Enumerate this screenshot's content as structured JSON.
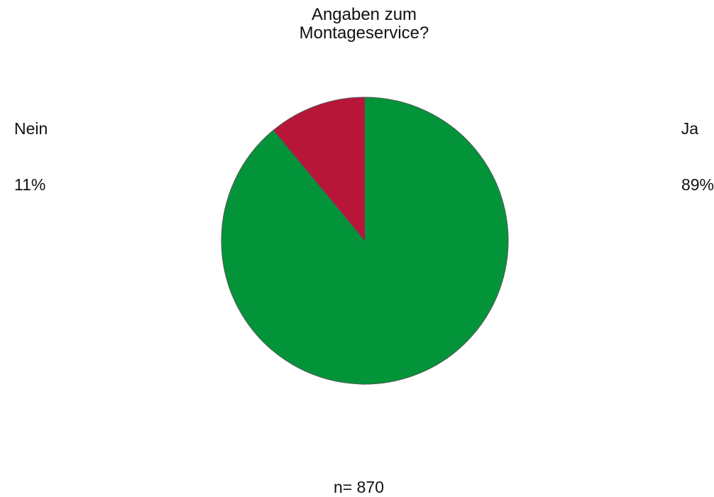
{
  "chart_data": {
    "type": "pie",
    "title_lines": [
      "Angaben zum",
      "Montageservice?"
    ],
    "slices": [
      {
        "label": "Ja",
        "value": 89,
        "percent_label": "89%",
        "color": "#03943a"
      },
      {
        "label": "Nein",
        "value": 11,
        "percent_label": "11%",
        "color": "#b81639"
      }
    ],
    "start_angle": "12 o'clock",
    "direction": "clockwise",
    "slice_border_color": "#555555",
    "footnote": "n= 870"
  }
}
